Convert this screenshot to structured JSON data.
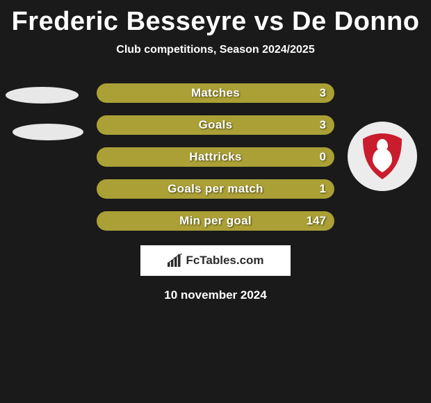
{
  "title": "Frederic Besseyre vs De Donno",
  "subtitle": "Club competitions, Season 2024/2025",
  "stats": [
    {
      "label": "Matches",
      "value": "3"
    },
    {
      "label": "Goals",
      "value": "3"
    },
    {
      "label": "Hattricks",
      "value": "0"
    },
    {
      "label": "Goals per match",
      "value": "1"
    },
    {
      "label": "Min per goal",
      "value": "147"
    }
  ],
  "footer_brand": "FcTables.com",
  "date_text": "10 november 2024",
  "colors": {
    "bar": "#aaa035",
    "background": "#1a1a1a",
    "ellipse": "#e8e8e8",
    "shield_red": "#c91d2e",
    "shield_white": "#ffffff"
  },
  "ellipse_left_tops": [
    125,
    178
  ]
}
